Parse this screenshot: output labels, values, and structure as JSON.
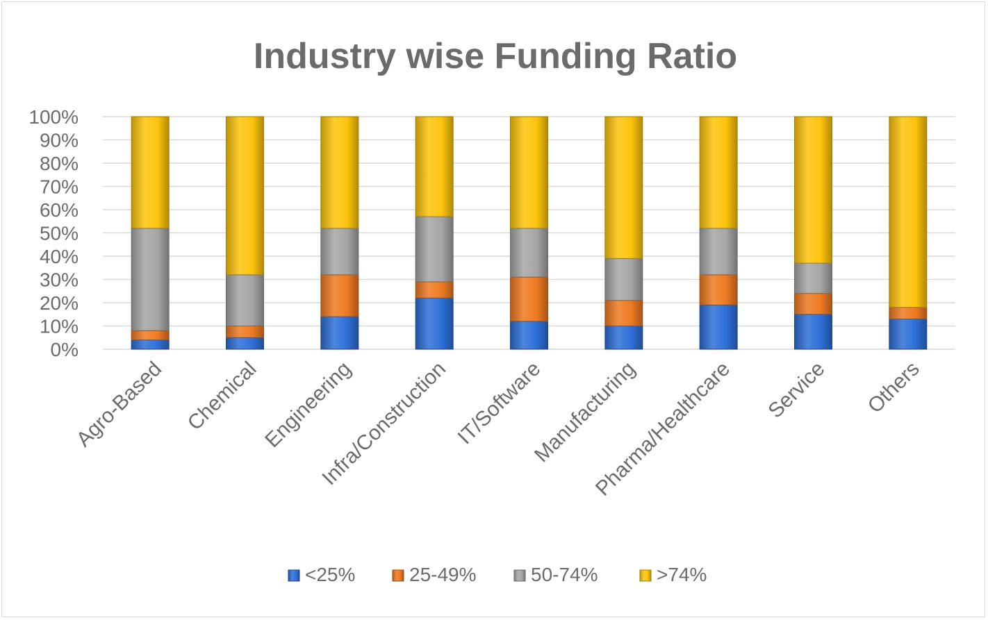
{
  "chart_data": {
    "type": "bar",
    "stacked": "percent",
    "title": "Industry wise Funding Ratio",
    "xlabel": "",
    "ylabel": "",
    "ylim": [
      0,
      100
    ],
    "y_ticks": [
      "0%",
      "10%",
      "20%",
      "30%",
      "40%",
      "50%",
      "60%",
      "70%",
      "80%",
      "90%",
      "100%"
    ],
    "grid": true,
    "legend_position": "bottom",
    "categories": [
      "Agro-Based",
      "Chemical",
      "Engineering",
      "Infra/Construction",
      "IT/Software",
      "Manufacturing",
      "Pharma/Healthcare",
      "Service",
      "Others"
    ],
    "series": [
      {
        "name": "<25%",
        "color": "#2e6fd8",
        "values": [
          4,
          5,
          14,
          22,
          12,
          10,
          19,
          15,
          13
        ]
      },
      {
        "name": "25-49%",
        "color": "#ee7a22",
        "values": [
          4,
          5,
          18,
          7,
          19,
          11,
          13,
          9,
          5
        ]
      },
      {
        "name": "50-74%",
        "color": "#a5a5a5",
        "values": [
          44,
          22,
          20,
          28,
          21,
          18,
          20,
          13,
          0
        ]
      },
      {
        "name": ">74%",
        "color": "#fdc40c",
        "values": [
          48,
          68,
          48,
          43,
          48,
          61,
          48,
          63,
          82
        ]
      }
    ]
  }
}
